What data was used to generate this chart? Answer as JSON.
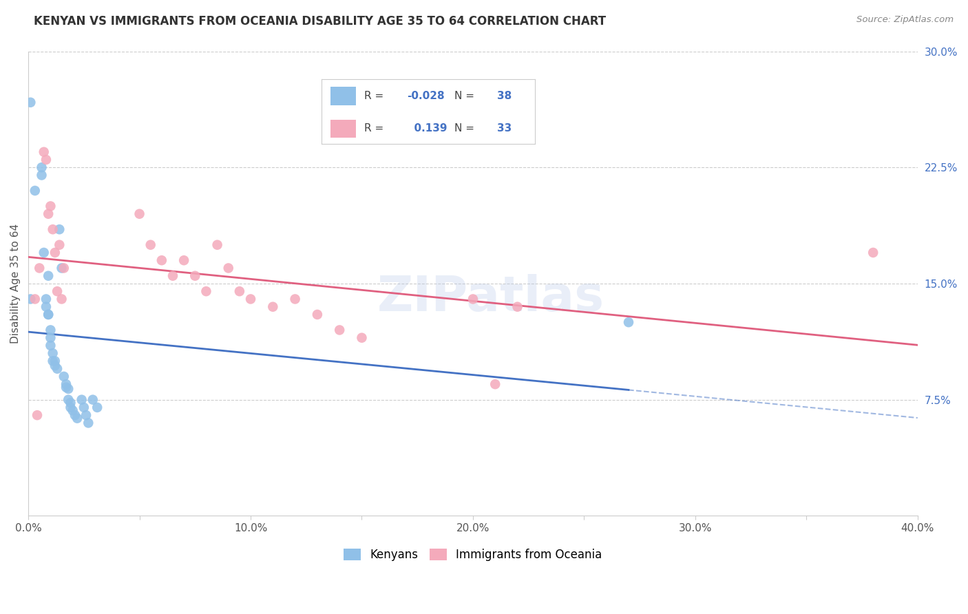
{
  "title": "KENYAN VS IMMIGRANTS FROM OCEANIA DISABILITY AGE 35 TO 64 CORRELATION CHART",
  "source": "Source: ZipAtlas.com",
  "ylabel": "Disability Age 35 to 64",
  "xlim": [
    0.0,
    0.4
  ],
  "ylim": [
    0.0,
    0.3
  ],
  "xticks": [
    0.0,
    0.05,
    0.1,
    0.15,
    0.2,
    0.25,
    0.3,
    0.35,
    0.4
  ],
  "xticklabels": [
    "0.0%",
    "",
    "10.0%",
    "",
    "20.0%",
    "",
    "30.0%",
    "",
    "40.0%"
  ],
  "yticks_right": [
    0.075,
    0.15,
    0.225,
    0.3
  ],
  "ytick_right_labels": [
    "7.5%",
    "15.0%",
    "22.5%",
    "30.0%"
  ],
  "legend_r_blue": "-0.028",
  "legend_n_blue": "38",
  "legend_r_pink": "0.139",
  "legend_n_pink": "33",
  "blue_color": "#90C0E8",
  "pink_color": "#F4AABB",
  "blue_line_color": "#4472C4",
  "pink_line_color": "#E06080",
  "watermark": "ZIPatlas",
  "kenyans_x": [
    0.001,
    0.003,
    0.006,
    0.006,
    0.007,
    0.008,
    0.008,
    0.009,
    0.009,
    0.009,
    0.01,
    0.01,
    0.01,
    0.011,
    0.011,
    0.012,
    0.012,
    0.013,
    0.014,
    0.015,
    0.016,
    0.017,
    0.017,
    0.018,
    0.018,
    0.019,
    0.019,
    0.02,
    0.021,
    0.022,
    0.024,
    0.025,
    0.026,
    0.027,
    0.029,
    0.031,
    0.27,
    0.001
  ],
  "kenyans_y": [
    0.267,
    0.21,
    0.225,
    0.22,
    0.17,
    0.14,
    0.135,
    0.155,
    0.13,
    0.13,
    0.12,
    0.115,
    0.11,
    0.105,
    0.1,
    0.1,
    0.097,
    0.095,
    0.185,
    0.16,
    0.09,
    0.085,
    0.083,
    0.082,
    0.075,
    0.073,
    0.07,
    0.068,
    0.065,
    0.063,
    0.075,
    0.07,
    0.065,
    0.06,
    0.075,
    0.07,
    0.125,
    0.14
  ],
  "oceania_x": [
    0.003,
    0.005,
    0.007,
    0.008,
    0.009,
    0.01,
    0.011,
    0.012,
    0.013,
    0.014,
    0.015,
    0.016,
    0.05,
    0.055,
    0.06,
    0.065,
    0.07,
    0.075,
    0.08,
    0.085,
    0.09,
    0.095,
    0.1,
    0.11,
    0.12,
    0.13,
    0.14,
    0.15,
    0.2,
    0.21,
    0.22,
    0.38,
    0.004
  ],
  "oceania_y": [
    0.14,
    0.16,
    0.235,
    0.23,
    0.195,
    0.2,
    0.185,
    0.17,
    0.145,
    0.175,
    0.14,
    0.16,
    0.195,
    0.175,
    0.165,
    0.155,
    0.165,
    0.155,
    0.145,
    0.175,
    0.16,
    0.145,
    0.14,
    0.135,
    0.14,
    0.13,
    0.12,
    0.115,
    0.14,
    0.085,
    0.135,
    0.17,
    0.065
  ]
}
